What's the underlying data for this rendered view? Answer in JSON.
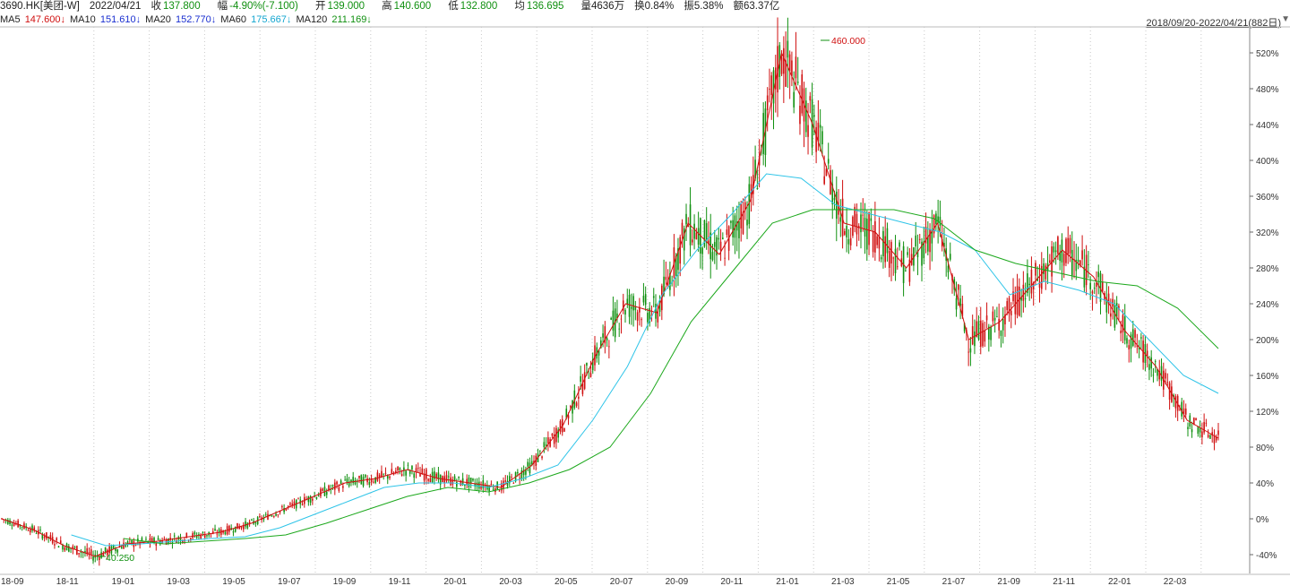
{
  "header": {
    "symbol": "3690.HK[美团-W]",
    "date": "2022/04/21",
    "close_label": "收",
    "close": "137.800",
    "change_label": "幅",
    "change": "-4.90%(-7.100)",
    "open_label": "开",
    "open": "139.000",
    "high_label": "高",
    "high": "140.600",
    "low_label": "低",
    "low": "132.800",
    "avg_label": "均",
    "avg": "136.695",
    "volume": "量4636万",
    "turnover": "换0.84%",
    "amplitude": "振5.38%",
    "amount": "额63.37亿"
  },
  "ma_legend": {
    "ma5_label": "MA5",
    "ma5": "147.600↓",
    "ma10_label": "MA10",
    "ma10": "151.610↓",
    "ma20_label": "MA20",
    "ma20": "152.770↓",
    "ma60_label": "MA60",
    "ma60": "175.667↓",
    "ma120_label": "MA120",
    "ma120": "211.169↓"
  },
  "range_label": "2018/09/20-2022/04/21(882日)",
  "range_icon": "triangle-down-icon",
  "annotations": {
    "high_marker": "460.000",
    "low_marker": "40.250"
  },
  "colors": {
    "up": "#d01010",
    "down": "#109010",
    "ma5": "#d01010",
    "ma10": "#1a2fd0",
    "ma20": "#1a2fd0",
    "ma60": "#2ec4e8",
    "ma120": "#1ca81c"
  },
  "chart_data": {
    "type": "line",
    "y_axis_ticks": [
      "520%",
      "480%",
      "440%",
      "400%",
      "360%",
      "320%",
      "280%",
      "240%",
      "200%",
      "160%",
      "120%",
      "80%",
      "40%",
      "0%",
      "-40%"
    ],
    "x_axis_ticks": [
      "18-09",
      "18-11",
      "19-01",
      "19-03",
      "19-05",
      "19-07",
      "19-09",
      "19-11",
      "20-01",
      "20-03",
      "20-05",
      "20-07",
      "20-09",
      "20-11",
      "21-01",
      "21-03",
      "21-05",
      "21-07",
      "21-09",
      "21-11",
      "22-01",
      "22-03"
    ],
    "ylim": [
      -40,
      540
    ],
    "series": [
      {
        "name": "MA5",
        "values": [
          0,
          -12,
          -30,
          -42,
          -28,
          -25,
          -20,
          -15,
          -5,
          10,
          25,
          40,
          45,
          55,
          45,
          40,
          35,
          60,
          105,
          180,
          240,
          230,
          330,
          295,
          355,
          520,
          440,
          330,
          320,
          280,
          330,
          200,
          220,
          260,
          300,
          270,
          210,
          170,
          110,
          90
        ]
      },
      {
        "name": "MA60",
        "values": [
          null,
          null,
          -18,
          -30,
          -28,
          -25,
          -22,
          -20,
          -10,
          5,
          20,
          35,
          40,
          40,
          35,
          45,
          60,
          110,
          170,
          250,
          300,
          340,
          385,
          380,
          350,
          340,
          330,
          320,
          300,
          250,
          265,
          255,
          240,
          200,
          160,
          140
        ]
      },
      {
        "name": "MA120",
        "values": [
          null,
          null,
          null,
          -22,
          -28,
          -25,
          -22,
          -18,
          -5,
          10,
          25,
          35,
          30,
          40,
          55,
          80,
          140,
          220,
          275,
          330,
          345,
          345,
          345,
          335,
          300,
          285,
          275,
          265,
          260,
          235,
          190
        ]
      }
    ]
  }
}
